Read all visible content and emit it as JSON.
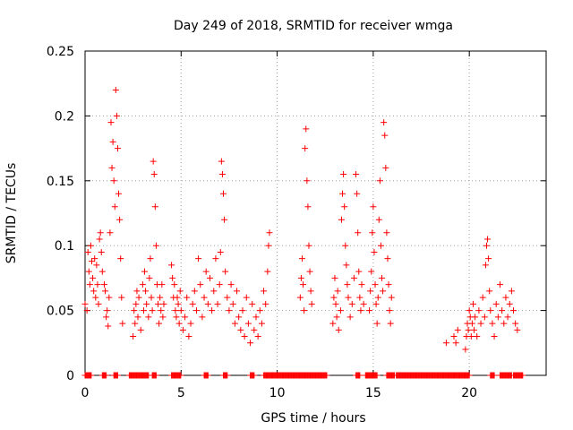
{
  "chart_data": {
    "type": "scatter",
    "title": "Day 249 of 2018, SRMTID for receiver wmga",
    "xlabel": "GPS time / hours",
    "ylabel": "SRMTID / TECUs",
    "xlim": [
      0,
      24
    ],
    "ylim": [
      0,
      0.25
    ],
    "xticks": [
      0,
      5,
      10,
      15,
      20
    ],
    "xtick_labels": [
      "0",
      "5",
      "10",
      "15",
      "20"
    ],
    "yticks": [
      0,
      0.05,
      0.1,
      0.15,
      0.2,
      0.25
    ],
    "ytick_labels": [
      "0",
      "0.05",
      "0.1",
      "0.15",
      "0.2",
      "0.25"
    ],
    "grid": true,
    "marker": "plus",
    "color": "#ff0000",
    "series": [
      {
        "name": "SRMTID",
        "points": [
          [
            0.0,
            0.055
          ],
          [
            0.1,
            0.05
          ],
          [
            0.15,
            0.095
          ],
          [
            0.2,
            0.08
          ],
          [
            0.25,
            0.07
          ],
          [
            0.3,
            0.1
          ],
          [
            0.35,
            0.088
          ],
          [
            0.4,
            0.075
          ],
          [
            0.45,
            0.065
          ],
          [
            0.5,
            0.09
          ],
          [
            0.55,
            0.06
          ],
          [
            0.6,
            0.085
          ],
          [
            0.65,
            0.07
          ],
          [
            0.7,
            0.055
          ],
          [
            0.75,
            0.105
          ],
          [
            0.8,
            0.11
          ],
          [
            0.85,
            0.095
          ],
          [
            0.9,
            0.08
          ],
          [
            1.0,
            0.07
          ],
          [
            1.05,
            0.065
          ],
          [
            1.1,
            0.045
          ],
          [
            1.15,
            0.05
          ],
          [
            1.2,
            0.038
          ],
          [
            1.25,
            0.06
          ],
          [
            1.3,
            0.11
          ],
          [
            1.35,
            0.195
          ],
          [
            1.4,
            0.16
          ],
          [
            1.45,
            0.18
          ],
          [
            1.5,
            0.15
          ],
          [
            1.55,
            0.13
          ],
          [
            1.6,
            0.22
          ],
          [
            1.65,
            0.2
          ],
          [
            1.7,
            0.175
          ],
          [
            1.75,
            0.14
          ],
          [
            1.8,
            0.12
          ],
          [
            1.85,
            0.09
          ],
          [
            1.9,
            0.06
          ],
          [
            1.95,
            0.04
          ],
          [
            2.5,
            0.03
          ],
          [
            2.55,
            0.05
          ],
          [
            2.6,
            0.04
          ],
          [
            2.65,
            0.055
          ],
          [
            2.7,
            0.065
          ],
          [
            2.75,
            0.045
          ],
          [
            2.8,
            0.06
          ],
          [
            2.9,
            0.035
          ],
          [
            3.0,
            0.07
          ],
          [
            3.05,
            0.05
          ],
          [
            3.1,
            0.08
          ],
          [
            3.15,
            0.065
          ],
          [
            3.2,
            0.055
          ],
          [
            3.3,
            0.045
          ],
          [
            3.35,
            0.075
          ],
          [
            3.4,
            0.09
          ],
          [
            3.45,
            0.06
          ],
          [
            3.5,
            0.05
          ],
          [
            3.55,
            0.165
          ],
          [
            3.6,
            0.155
          ],
          [
            3.65,
            0.13
          ],
          [
            3.7,
            0.1
          ],
          [
            3.75,
            0.07
          ],
          [
            3.8,
            0.055
          ],
          [
            3.85,
            0.04
          ],
          [
            3.9,
            0.06
          ],
          [
            3.95,
            0.05
          ],
          [
            4.0,
            0.07
          ],
          [
            4.05,
            0.045
          ],
          [
            4.1,
            0.055
          ],
          [
            4.5,
            0.085
          ],
          [
            4.55,
            0.075
          ],
          [
            4.6,
            0.06
          ],
          [
            4.65,
            0.07
          ],
          [
            4.7,
            0.05
          ],
          [
            4.75,
            0.045
          ],
          [
            4.8,
            0.06
          ],
          [
            4.85,
            0.055
          ],
          [
            4.9,
            0.04
          ],
          [
            4.95,
            0.065
          ],
          [
            5.0,
            0.05
          ],
          [
            5.1,
            0.035
          ],
          [
            5.2,
            0.045
          ],
          [
            5.3,
            0.06
          ],
          [
            5.4,
            0.03
          ],
          [
            5.5,
            0.04
          ],
          [
            5.6,
            0.055
          ],
          [
            5.7,
            0.065
          ],
          [
            5.8,
            0.05
          ],
          [
            5.9,
            0.09
          ],
          [
            6.0,
            0.07
          ],
          [
            6.1,
            0.045
          ],
          [
            6.2,
            0.06
          ],
          [
            6.3,
            0.08
          ],
          [
            6.4,
            0.055
          ],
          [
            6.5,
            0.075
          ],
          [
            6.6,
            0.05
          ],
          [
            6.7,
            0.065
          ],
          [
            6.8,
            0.09
          ],
          [
            6.9,
            0.055
          ],
          [
            7.0,
            0.07
          ],
          [
            7.05,
            0.095
          ],
          [
            7.1,
            0.165
          ],
          [
            7.15,
            0.155
          ],
          [
            7.2,
            0.14
          ],
          [
            7.25,
            0.12
          ],
          [
            7.3,
            0.08
          ],
          [
            7.4,
            0.06
          ],
          [
            7.5,
            0.05
          ],
          [
            7.6,
            0.07
          ],
          [
            7.7,
            0.055
          ],
          [
            7.8,
            0.04
          ],
          [
            7.9,
            0.065
          ],
          [
            8.0,
            0.045
          ],
          [
            8.1,
            0.035
          ],
          [
            8.2,
            0.05
          ],
          [
            8.3,
            0.03
          ],
          [
            8.4,
            0.06
          ],
          [
            8.5,
            0.04
          ],
          [
            8.6,
            0.025
          ],
          [
            8.7,
            0.055
          ],
          [
            8.8,
            0.035
          ],
          [
            8.9,
            0.045
          ],
          [
            9.0,
            0.03
          ],
          [
            9.1,
            0.05
          ],
          [
            9.2,
            0.04
          ],
          [
            9.3,
            0.065
          ],
          [
            9.4,
            0.055
          ],
          [
            9.5,
            0.08
          ],
          [
            9.55,
            0.1
          ],
          [
            9.6,
            0.11
          ],
          [
            11.2,
            0.06
          ],
          [
            11.25,
            0.075
          ],
          [
            11.3,
            0.09
          ],
          [
            11.35,
            0.07
          ],
          [
            11.4,
            0.05
          ],
          [
            11.45,
            0.175
          ],
          [
            11.5,
            0.19
          ],
          [
            11.55,
            0.15
          ],
          [
            11.6,
            0.13
          ],
          [
            11.65,
            0.1
          ],
          [
            11.7,
            0.08
          ],
          [
            11.75,
            0.065
          ],
          [
            11.8,
            0.055
          ],
          [
            12.9,
            0.04
          ],
          [
            12.95,
            0.06
          ],
          [
            13.0,
            0.075
          ],
          [
            13.05,
            0.055
          ],
          [
            13.1,
            0.045
          ],
          [
            13.15,
            0.065
          ],
          [
            13.2,
            0.035
          ],
          [
            13.3,
            0.05
          ],
          [
            13.35,
            0.12
          ],
          [
            13.4,
            0.14
          ],
          [
            13.45,
            0.155
          ],
          [
            13.5,
            0.13
          ],
          [
            13.55,
            0.1
          ],
          [
            13.6,
            0.085
          ],
          [
            13.65,
            0.07
          ],
          [
            13.7,
            0.06
          ],
          [
            13.8,
            0.045
          ],
          [
            13.9,
            0.055
          ],
          [
            14.0,
            0.075
          ],
          [
            14.1,
            0.155
          ],
          [
            14.15,
            0.14
          ],
          [
            14.2,
            0.11
          ],
          [
            14.25,
            0.08
          ],
          [
            14.3,
            0.06
          ],
          [
            14.35,
            0.05
          ],
          [
            14.4,
            0.07
          ],
          [
            14.5,
            0.055
          ],
          [
            14.8,
            0.05
          ],
          [
            14.85,
            0.065
          ],
          [
            14.9,
            0.08
          ],
          [
            14.95,
            0.11
          ],
          [
            15.0,
            0.13
          ],
          [
            15.05,
            0.095
          ],
          [
            15.1,
            0.07
          ],
          [
            15.15,
            0.055
          ],
          [
            15.2,
            0.04
          ],
          [
            15.25,
            0.06
          ],
          [
            15.3,
            0.12
          ],
          [
            15.35,
            0.15
          ],
          [
            15.4,
            0.1
          ],
          [
            15.45,
            0.075
          ],
          [
            15.5,
            0.065
          ],
          [
            15.55,
            0.195
          ],
          [
            15.6,
            0.185
          ],
          [
            15.65,
            0.16
          ],
          [
            15.7,
            0.11
          ],
          [
            15.75,
            0.09
          ],
          [
            15.8,
            0.07
          ],
          [
            15.85,
            0.05
          ],
          [
            15.9,
            0.04
          ],
          [
            15.95,
            0.06
          ],
          [
            18.8,
            0.025
          ],
          [
            19.2,
            0.03
          ],
          [
            19.3,
            0.025
          ],
          [
            19.4,
            0.035
          ],
          [
            19.8,
            0.02
          ],
          [
            19.85,
            0.03
          ],
          [
            19.9,
            0.04
          ],
          [
            19.95,
            0.035
          ],
          [
            20.0,
            0.05
          ],
          [
            20.05,
            0.045
          ],
          [
            20.1,
            0.03
          ],
          [
            20.15,
            0.04
          ],
          [
            20.2,
            0.055
          ],
          [
            20.25,
            0.035
          ],
          [
            20.3,
            0.045
          ],
          [
            20.4,
            0.03
          ],
          [
            20.5,
            0.05
          ],
          [
            20.6,
            0.04
          ],
          [
            20.7,
            0.06
          ],
          [
            20.8,
            0.045
          ],
          [
            20.85,
            0.085
          ],
          [
            20.9,
            0.1
          ],
          [
            20.95,
            0.105
          ],
          [
            21.0,
            0.09
          ],
          [
            21.05,
            0.065
          ],
          [
            21.1,
            0.05
          ],
          [
            21.2,
            0.04
          ],
          [
            21.3,
            0.03
          ],
          [
            21.4,
            0.055
          ],
          [
            21.5,
            0.045
          ],
          [
            21.6,
            0.07
          ],
          [
            21.7,
            0.05
          ],
          [
            21.8,
            0.04
          ],
          [
            21.9,
            0.06
          ],
          [
            22.0,
            0.045
          ],
          [
            22.1,
            0.055
          ],
          [
            22.2,
            0.065
          ],
          [
            22.3,
            0.05
          ],
          [
            22.4,
            0.04
          ],
          [
            22.5,
            0.035
          ]
        ]
      }
    ],
    "baseline_segments": [
      [
        0.0,
        0.35
      ],
      [
        0.9,
        1.1
      ],
      [
        1.5,
        1.7
      ],
      [
        2.3,
        3.3
      ],
      [
        3.5,
        3.7
      ],
      [
        4.5,
        5.0
      ],
      [
        6.2,
        6.4
      ],
      [
        7.2,
        7.4
      ],
      [
        8.6,
        8.8
      ],
      [
        9.3,
        12.6
      ],
      [
        14.1,
        14.3
      ],
      [
        14.6,
        15.2
      ],
      [
        15.7,
        16.1
      ],
      [
        16.2,
        20.0
      ],
      [
        21.1,
        21.3
      ],
      [
        21.6,
        22.2
      ],
      [
        22.3,
        22.8
      ]
    ],
    "baseline_value": 0
  }
}
